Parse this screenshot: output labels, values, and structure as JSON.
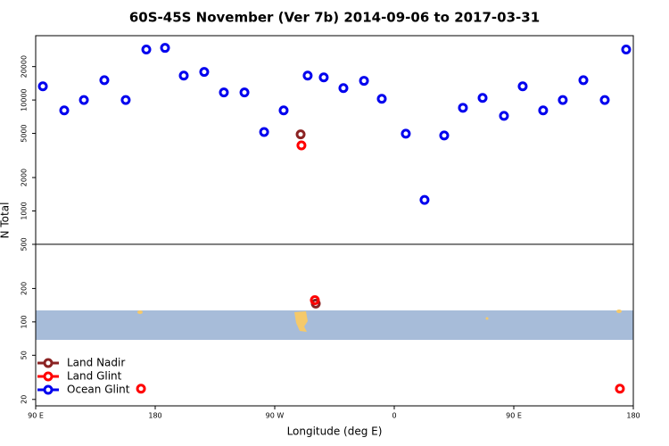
{
  "chart_data": {
    "type": "scatter",
    "title": "60S-45S November (Ver 7b)   2014-09-06 to 2017-03-31",
    "xlabel": "Longitude (deg E)",
    "ylabel": "N Total",
    "xlim": [
      90,
      540
    ],
    "ylim": [
      17.5,
      38000
    ],
    "log_y": true,
    "legend_loc": "lower left",
    "reference_line": 500,
    "xticks": [
      {
        "value": 90,
        "label": "90 E"
      },
      {
        "value": 180,
        "label": "180"
      },
      {
        "value": 270,
        "label": "90 W"
      },
      {
        "value": 360,
        "label": "0"
      },
      {
        "value": 450,
        "label": "90 E"
      },
      {
        "value": 540,
        "label": "180"
      }
    ],
    "yticks": [
      20,
      50,
      100,
      200,
      500,
      1000,
      2000,
      5000,
      10000,
      20000
    ],
    "series": [
      {
        "name": "Land Nadir",
        "color": "#8b2323",
        "x": [
          289.5,
          300.9
        ],
        "values": [
          4900,
          146
        ]
      },
      {
        "name": "Land Glint",
        "color": "#ff0000",
        "x": [
          290.1,
          300.2,
          169.3,
          529.9
        ],
        "values": [
          3900,
          157,
          25,
          25
        ]
      },
      {
        "name": "Ocean Glint",
        "color": "#0000ee",
        "x": [
          95.4,
          111.5,
          126.3,
          141.7,
          157.8,
          173.3,
          187.4,
          201.5,
          216.9,
          231.7,
          247.2,
          262,
          276.7,
          294.8,
          306.9,
          321.7,
          337.2,
          350.6,
          368.7,
          382.8,
          397.6,
          411.7,
          426.5,
          442.6,
          456.7,
          472.1,
          486.9,
          502.4,
          518.5,
          534.6
        ],
        "values": [
          13300,
          8060,
          10000,
          15100,
          10000,
          28500,
          29500,
          16600,
          17900,
          11700,
          11700,
          5150,
          8060,
          16600,
          16000,
          12800,
          14900,
          10250,
          4970,
          1256,
          4790,
          8510,
          10450,
          7200,
          13300,
          8060,
          10000,
          15100,
          10000,
          28500
        ]
      }
    ]
  }
}
